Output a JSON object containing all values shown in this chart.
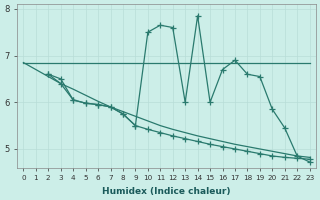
{
  "xlabel": "Humidex (Indice chaleur)",
  "background_color": "#cceee8",
  "line_color": "#2a7a6e",
  "xlim": [
    -0.5,
    23.5
  ],
  "ylim": [
    4.6,
    8.1
  ],
  "yticks": [
    5,
    6,
    7,
    8
  ],
  "xticks": [
    0,
    1,
    2,
    3,
    4,
    5,
    6,
    7,
    8,
    9,
    10,
    11,
    12,
    13,
    14,
    15,
    16,
    17,
    18,
    19,
    20,
    21,
    22,
    23
  ],
  "line1_x": [
    0,
    1,
    2,
    3,
    4,
    5,
    6,
    7,
    8,
    9,
    10,
    11,
    12,
    13,
    14,
    15,
    16,
    17,
    18,
    19,
    20,
    21,
    22,
    23
  ],
  "line1_y": [
    6.85,
    6.85,
    6.85,
    6.85,
    6.85,
    6.85,
    6.85,
    6.85,
    6.85,
    6.85,
    6.85,
    6.85,
    6.85,
    6.85,
    6.85,
    6.85,
    6.85,
    6.85,
    6.85,
    6.85,
    6.85,
    6.85,
    6.85,
    6.85
  ],
  "line2_x": [
    0,
    1,
    2,
    3,
    4,
    5,
    6,
    7,
    8,
    9,
    10,
    11,
    12,
    13,
    14,
    15,
    16,
    17,
    18,
    19,
    20,
    21,
    22,
    23
  ],
  "line2_y": [
    6.85,
    6.7,
    6.55,
    6.4,
    6.28,
    6.15,
    6.02,
    5.9,
    5.8,
    5.7,
    5.6,
    5.5,
    5.42,
    5.35,
    5.28,
    5.22,
    5.16,
    5.1,
    5.05,
    5.0,
    4.95,
    4.9,
    4.85,
    4.82
  ],
  "line3_x": [
    2,
    3,
    4,
    5,
    6,
    7,
    8,
    9,
    10,
    11,
    12,
    13,
    14,
    15,
    16,
    17,
    18,
    19,
    20,
    21,
    22,
    23
  ],
  "line3_y": [
    6.6,
    6.5,
    6.05,
    5.98,
    5.95,
    5.9,
    5.75,
    5.5,
    7.5,
    7.65,
    7.6,
    6.0,
    7.85,
    6.0,
    6.7,
    6.9,
    6.6,
    6.55,
    5.85,
    5.45,
    4.85,
    4.72
  ],
  "line4_x": [
    2,
    3,
    4,
    5,
    6,
    7,
    8,
    9,
    10,
    11,
    12,
    13,
    14,
    15,
    16,
    17,
    18,
    19,
    20,
    21,
    22,
    23
  ],
  "line4_y": [
    6.6,
    6.4,
    6.05,
    5.98,
    5.95,
    5.9,
    5.75,
    5.5,
    5.42,
    5.35,
    5.28,
    5.22,
    5.16,
    5.1,
    5.05,
    5.0,
    4.95,
    4.9,
    4.85,
    4.82,
    4.8,
    4.78
  ]
}
